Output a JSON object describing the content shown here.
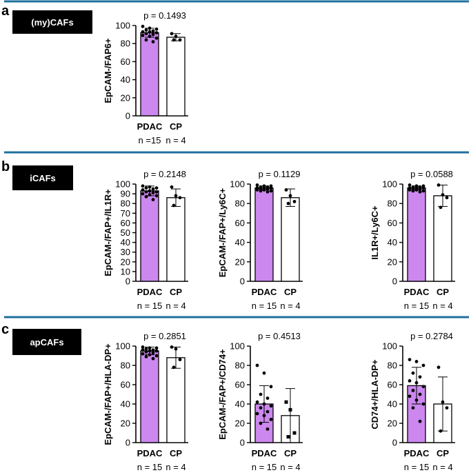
{
  "colors": {
    "divider": "#1f6f9e",
    "bar_primary": "#cc88ee",
    "bar_secondary": "#ffffff",
    "ink": "#000000",
    "label_box": "#000000",
    "label_text": "#ffffff"
  },
  "panels": [
    {
      "letter": "a",
      "label": "(my)CAFs"
    },
    {
      "letter": "b",
      "label": "iCAFs"
    },
    {
      "letter": "c",
      "label": "apCAFs"
    }
  ],
  "groups": [
    {
      "name": "PDAC",
      "n_label": "n =15"
    },
    {
      "name": "CP",
      "n_label": "n = 4"
    }
  ],
  "chart_data": [
    {
      "type": "bar",
      "panel": "a",
      "title": "p = 0.1493",
      "ylabel": "EpCAM-/FAP6+",
      "ylim": [
        0,
        100
      ],
      "yticks": [
        "0",
        "20",
        "40",
        "60",
        "80",
        "100"
      ],
      "categories": [
        "PDAC",
        "CP"
      ],
      "n_labels": [
        "n =15",
        "n = 4"
      ],
      "values": [
        92,
        87
      ],
      "error_sd": [
        5,
        4
      ],
      "points": [
        [
          99,
          97,
          96,
          95,
          94,
          93,
          93,
          92,
          91,
          90,
          89,
          88,
          86,
          84,
          82
        ],
        [
          91,
          88,
          84,
          84
        ]
      ]
    },
    {
      "type": "bar",
      "panel": "b",
      "title": "p = 0.2148",
      "ylabel": "EpCAM-/FAP+/IL1R+",
      "ylim": [
        0,
        100
      ],
      "yticks": [
        "0",
        "10",
        "20",
        "30",
        "40",
        "50",
        "60",
        "70",
        "80",
        "90",
        "100"
      ],
      "categories": [
        "PDAC",
        "CP"
      ],
      "n_labels": [
        "n = 15",
        "n = 4"
      ],
      "values": [
        93,
        86
      ],
      "error_sd": [
        5,
        9
      ],
      "points": [
        [
          98,
          97,
          96,
          96,
          95,
          94,
          93,
          92,
          92,
          91,
          90,
          89,
          88,
          87,
          84
        ],
        [
          97,
          88,
          86,
          78
        ]
      ]
    },
    {
      "type": "bar",
      "panel": "b",
      "title": "p = 0.1129",
      "ylabel": "EpCAM-/FAP+/Ly6C+",
      "ylim": [
        0,
        100
      ],
      "yticks": [
        "0",
        "20",
        "40",
        "60",
        "80",
        "100"
      ],
      "categories": [
        "PDAC",
        "CP"
      ],
      "n_labels": [
        "n = 15",
        "n = 4"
      ],
      "values": [
        96,
        86
      ],
      "error_sd": [
        2,
        9
      ],
      "points": [
        [
          99,
          98,
          98,
          97,
          97,
          96,
          96,
          96,
          95,
          95,
          94,
          94,
          93,
          93,
          92
        ],
        [
          94,
          88,
          82,
          80
        ]
      ]
    },
    {
      "type": "bar",
      "panel": "b",
      "title": "p = 0.0588",
      "ylabel": "IL1R+/Ly6C+",
      "ylim": [
        0,
        100
      ],
      "yticks": [
        "0",
        "20",
        "40",
        "60",
        "80",
        "100"
      ],
      "categories": [
        "PDAC",
        "CP"
      ],
      "n_labels": [
        "n = 15",
        "n = 4"
      ],
      "values": [
        96,
        88
      ],
      "error_sd": [
        2,
        11
      ],
      "points": [
        [
          99,
          98,
          98,
          97,
          97,
          96,
          96,
          96,
          95,
          95,
          94,
          94,
          93,
          93,
          92
        ],
        [
          99,
          89,
          86,
          76
        ]
      ]
    },
    {
      "type": "bar",
      "panel": "c",
      "title": "p = 0.2851",
      "ylabel": "EpCAM-/FAP+/HLA-DP+",
      "ylim": [
        0,
        100
      ],
      "yticks": [
        "0",
        "20",
        "40",
        "60",
        "80",
        "100"
      ],
      "categories": [
        "PDAC",
        "CP"
      ],
      "n_labels": [
        "n = 15",
        "n = 4"
      ],
      "values": [
        95,
        88
      ],
      "error_sd": [
        4,
        11
      ],
      "points": [
        [
          99,
          98,
          98,
          97,
          96,
          96,
          95,
          95,
          94,
          93,
          92,
          91,
          90,
          89,
          87
        ],
        [
          99,
          97,
          86,
          78
        ]
      ]
    },
    {
      "type": "bar",
      "panel": "c",
      "title": "p = 0.4513",
      "ylabel": "EpCAM-/FAP+/CD74+",
      "ylim": [
        0,
        100
      ],
      "yticks": [
        "0",
        "20",
        "40",
        "60",
        "80",
        "100"
      ],
      "categories": [
        "PDAC",
        "CP"
      ],
      "n_labels": [
        "n = 15",
        "n = 4"
      ],
      "values": [
        40,
        28
      ],
      "error_sd": [
        19,
        28
      ],
      "points": [
        [
          80,
          72,
          58,
          50,
          46,
          42,
          40,
          38,
          36,
          32,
          30,
          28,
          24,
          20,
          14
        ],
        [
          42,
          34,
          10,
          6
        ]
      ]
    },
    {
      "type": "bar",
      "panel": "c",
      "title": "p = 0.2784",
      "ylabel": "CD74+/HLA-DP+",
      "ylim": [
        0,
        100
      ],
      "yticks": [
        "0",
        "20",
        "40",
        "60",
        "80",
        "100"
      ],
      "categories": [
        "PDAC",
        "CP"
      ],
      "n_labels": [
        "n = 15",
        "n = 4"
      ],
      "values": [
        59,
        40
      ],
      "error_sd": [
        19,
        28
      ],
      "points": [
        [
          86,
          84,
          80,
          72,
          68,
          64,
          62,
          58,
          54,
          50,
          48,
          44,
          40,
          36,
          22
        ],
        [
          78,
          42,
          36,
          12
        ]
      ]
    }
  ]
}
